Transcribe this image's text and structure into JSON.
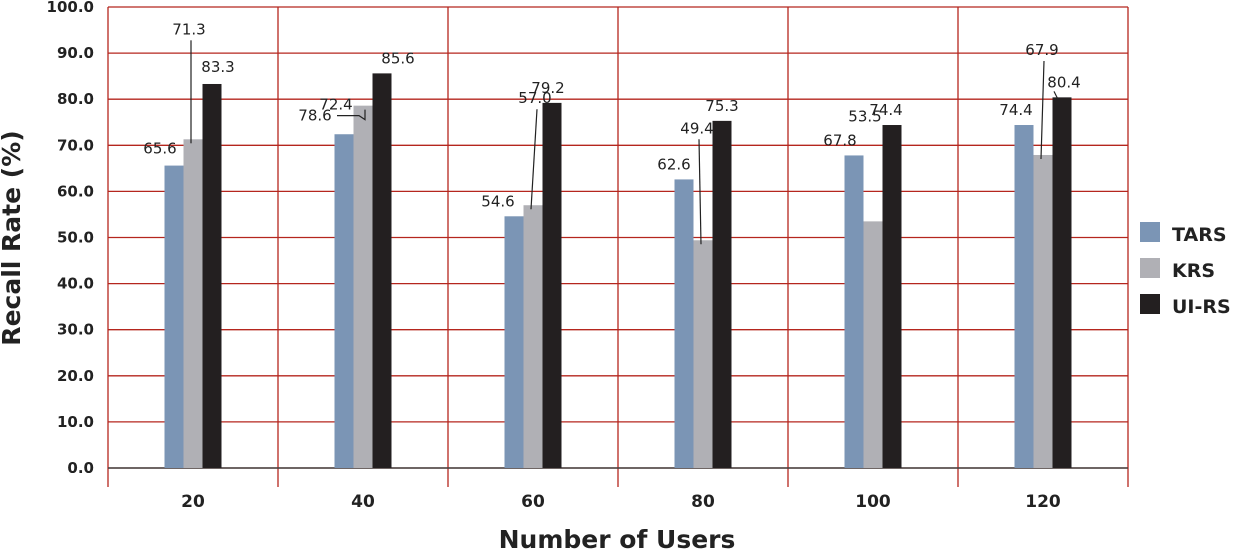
{
  "chart_data": {
    "type": "bar",
    "title": "",
    "xlabel": "Number of Users",
    "ylabel": "Recall Rate (%)",
    "categories": [
      "20",
      "40",
      "60",
      "80",
      "100",
      "120"
    ],
    "ylim": [
      0,
      100
    ],
    "yticks": [
      "0.0",
      "10.0",
      "20.0",
      "30.0",
      "40.0",
      "50.0",
      "60.0",
      "70.0",
      "80.0",
      "90.0",
      "100.0"
    ],
    "grid": true,
    "legend_position": "right",
    "series": [
      {
        "name": "TARS",
        "color": "#7b95b5",
        "values": [
          65.6,
          72.4,
          54.6,
          62.6,
          67.8,
          74.4
        ]
      },
      {
        "name": "KRS",
        "color": "#b0b0b5",
        "values": [
          71.3,
          78.6,
          57.0,
          49.4,
          53.5,
          67.9
        ]
      },
      {
        "name": "UI-RS",
        "color": "#231f20",
        "values": [
          83.3,
          85.6,
          79.2,
          75.3,
          74.4,
          80.4
        ]
      }
    ],
    "data_labels": {
      "TARS": [
        "65.6",
        "72.4",
        "54.6",
        "62.6",
        "67.8",
        "74.4"
      ],
      "KRS": [
        "71.3",
        "78.6",
        "57.0",
        "49.4",
        "53.5",
        "67.9"
      ],
      "UI-RS": [
        "83.3",
        "85.6",
        "79.2",
        "75.3",
        "74.4",
        "80.4"
      ]
    },
    "gridline_color": "#b5261e"
  }
}
